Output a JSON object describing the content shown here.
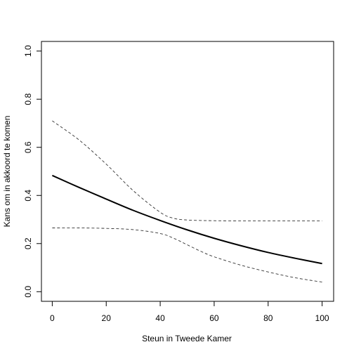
{
  "chart_data": {
    "type": "line",
    "title": "",
    "xlabel": "Steun in Tweede Kamer",
    "ylabel": "Kans om in akkoord te komen",
    "xlim": [
      0,
      100
    ],
    "ylim": [
      0,
      1
    ],
    "x_ticks": [
      0,
      20,
      40,
      60,
      80,
      100
    ],
    "y_ticks": [
      0.0,
      0.2,
      0.4,
      0.6,
      0.8,
      1.0
    ],
    "x_tick_labels": [
      "0",
      "20",
      "40",
      "60",
      "80",
      "100"
    ],
    "y_tick_labels": [
      "0.0",
      "0.2",
      "0.4",
      "0.6",
      "0.8",
      "1.0"
    ],
    "grid": false,
    "series": [
      {
        "style": "solid",
        "x": [
          0,
          10,
          20,
          30,
          40,
          50,
          60,
          70,
          80,
          90,
          100
        ],
        "y": [
          0.483,
          0.433,
          0.385,
          0.338,
          0.296,
          0.257,
          0.222,
          0.191,
          0.163,
          0.139,
          0.117
        ]
      },
      {
        "style": "dashed",
        "x": [
          0,
          10,
          20,
          30,
          40,
          45,
          50,
          55,
          60,
          70,
          80,
          90,
          100
        ],
        "y": [
          0.71,
          0.63,
          0.53,
          0.42,
          0.33,
          0.305,
          0.298,
          0.296,
          0.295,
          0.294,
          0.294,
          0.294,
          0.294
        ]
      },
      {
        "style": "dashed",
        "x": [
          0,
          10,
          20,
          30,
          40,
          45,
          50,
          55,
          60,
          70,
          80,
          90,
          100
        ],
        "y": [
          0.265,
          0.265,
          0.263,
          0.258,
          0.242,
          0.222,
          0.195,
          0.168,
          0.145,
          0.11,
          0.082,
          0.058,
          0.04
        ]
      }
    ]
  }
}
